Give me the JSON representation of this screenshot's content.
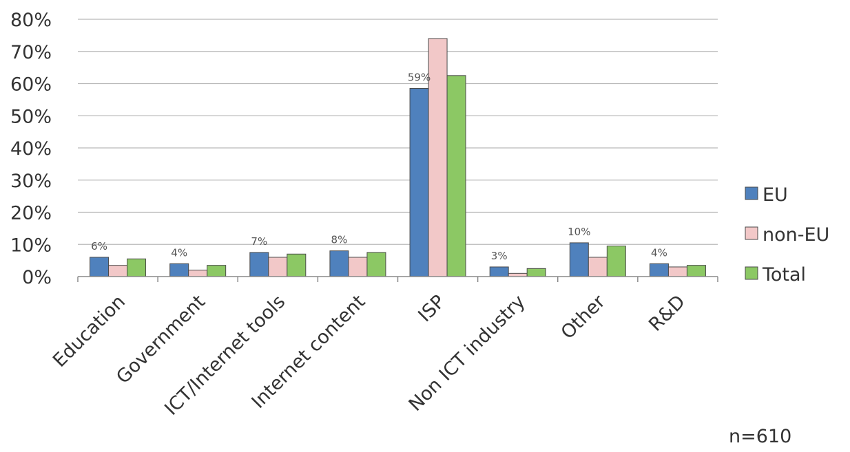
{
  "chart_data": {
    "type": "bar",
    "title": "",
    "xlabel": "",
    "ylabel": "",
    "categories": [
      "Education",
      "Government",
      "ICT/Internet tools",
      "Internet content",
      "ISP",
      "Non ICT industry",
      "Other",
      "R&D"
    ],
    "series": [
      {
        "name": "EU",
        "color": "#4f81bd",
        "values": [
          6,
          4,
          7.5,
          8,
          58.5,
          3,
          10.5,
          4
        ]
      },
      {
        "name": "non-EU",
        "color": "#f2c8c8",
        "values": [
          3.5,
          2,
          6,
          6,
          74,
          1,
          6,
          3
        ]
      },
      {
        "name": "Total",
        "color": "#8cc864",
        "values": [
          5.5,
          3.5,
          7,
          7.5,
          62.5,
          2.5,
          9.5,
          3.5
        ]
      }
    ],
    "data_labels": [
      "6%",
      "4%",
      "7%",
      "8%",
      "59%",
      "3%",
      "10%",
      "4%"
    ],
    "y_ticks": [
      "0%",
      "10%",
      "20%",
      "30%",
      "40%",
      "50%",
      "60%",
      "70%",
      "80%"
    ],
    "ylim": [
      0,
      80
    ],
    "grid": true,
    "legend_position": "right",
    "note": "n=610"
  }
}
